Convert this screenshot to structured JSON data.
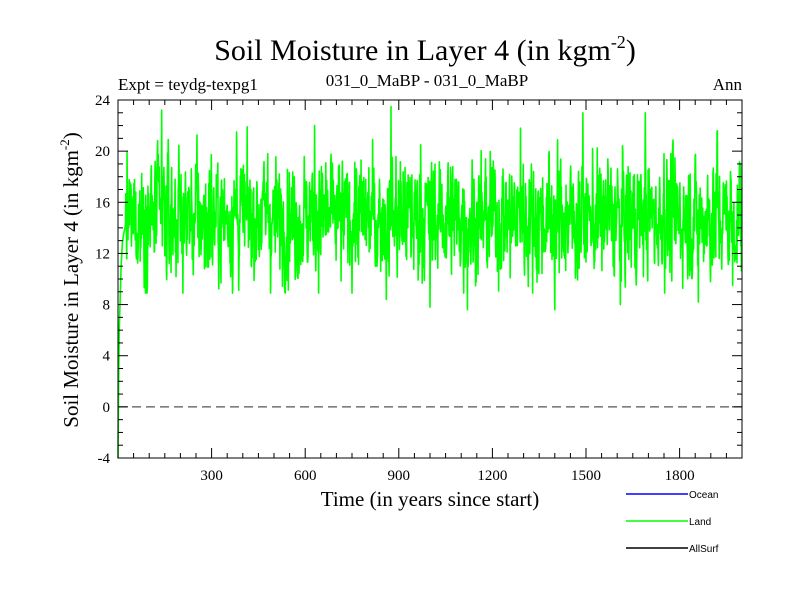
{
  "chart_data": {
    "type": "line",
    "title": "Soil Moisture in Layer 4 (in kgm",
    "title_sup": "-2",
    "title_close": ")",
    "subtitle_left": "Expt = teydg-texpg1",
    "subtitle_center": "031_0_MaBP - 031_0_MaBP",
    "subtitle_right": "Ann",
    "xlabel": "Time (in years since start)",
    "ylabel": "Soil Moisture in Layer 4 (in kgm",
    "ylabel_sup": "-2",
    "ylabel_close": ")",
    "xlim": [
      0,
      2000
    ],
    "ylim": [
      -4,
      24
    ],
    "xticks": [
      300,
      600,
      900,
      1200,
      1500,
      1800
    ],
    "yticks": [
      -4,
      0,
      4,
      8,
      12,
      16,
      20,
      24
    ],
    "zero_line": 0,
    "legend": [
      {
        "name": "Ocean",
        "color": "#0000ff"
      },
      {
        "name": "Land",
        "color": "#00ff00"
      },
      {
        "name": "AllSurf",
        "color": "#000000"
      }
    ],
    "series": [
      {
        "name": "Land",
        "color": "#00ff00",
        "spinup": [
          [
            0,
            -4
          ],
          [
            2,
            2
          ],
          [
            4,
            6
          ],
          [
            7,
            8.5
          ],
          [
            10,
            11
          ],
          [
            14,
            12.8
          ],
          [
            18,
            13.5
          ],
          [
            24,
            14.2
          ]
        ],
        "mean": 14.8,
        "sd": 2.3,
        "clip_min": 7.7,
        "clip_max": 23.5,
        "events": [
          [
            140,
            23.2
          ],
          [
            380,
            21.5
          ],
          [
            480,
            19.8
          ],
          [
            630,
            22.0
          ],
          [
            860,
            8.4
          ],
          [
            875,
            23.5
          ],
          [
            970,
            20.5
          ],
          [
            1000,
            7.8
          ],
          [
            1120,
            7.6
          ],
          [
            1290,
            21.8
          ],
          [
            1400,
            7.6
          ],
          [
            1490,
            23.0
          ],
          [
            1610,
            8.0
          ],
          [
            1690,
            23.0
          ],
          [
            1750,
            19.8
          ],
          [
            1860,
            8.2
          ],
          [
            1920,
            21.5
          ],
          [
            1970,
            9.5
          ],
          [
            1995,
            19.0
          ]
        ]
      }
    ]
  }
}
